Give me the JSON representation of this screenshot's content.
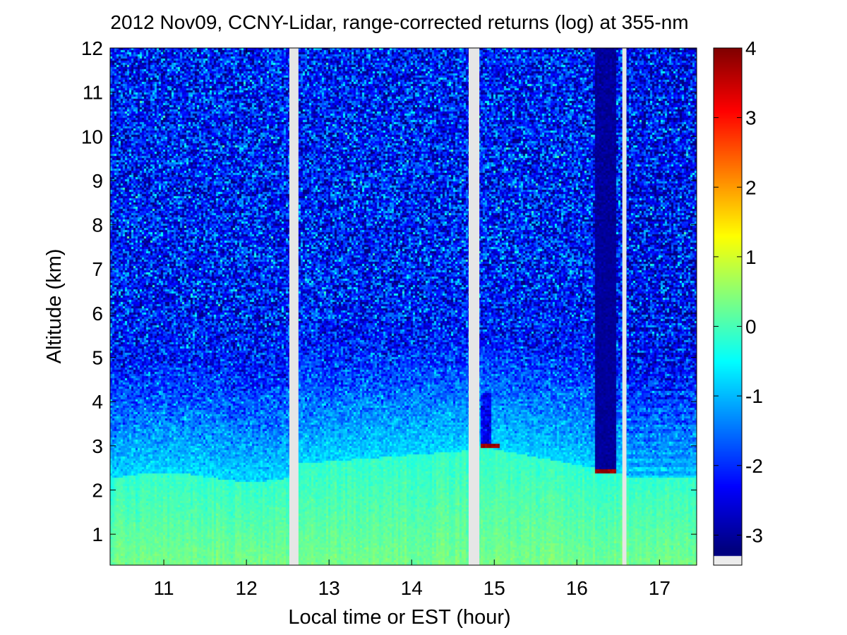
{
  "chart_data": {
    "type": "heatmap",
    "title": "2012 Nov09, CCNY-Lidar, range-corrected returns (log) at 355-nm",
    "xlabel": "Local time or EST (hour)",
    "ylabel": "Altitude (km)",
    "xlim": [
      10.35,
      17.45
    ],
    "ylim": [
      0.3,
      12
    ],
    "xticks": [
      "11",
      "12",
      "13",
      "14",
      "15",
      "16",
      "17"
    ],
    "xtick_values": [
      11,
      12,
      13,
      14,
      15,
      16,
      17
    ],
    "yticks": [
      "1",
      "2",
      "3",
      "4",
      "5",
      "6",
      "7",
      "8",
      "9",
      "10",
      "11",
      "12"
    ],
    "ytick_values": [
      1,
      2,
      3,
      4,
      5,
      6,
      7,
      8,
      9,
      10,
      11,
      12
    ],
    "colorbar": {
      "min": -3.2,
      "max": 4,
      "ticks": [
        "4",
        "3",
        "2",
        "1",
        "0",
        "-1",
        "-2",
        "-3"
      ],
      "tick_values": [
        4,
        3,
        2,
        1,
        0,
        -1,
        -2,
        -3
      ],
      "colormap": "jet"
    },
    "data_gaps_hours": [
      [
        12.52,
        12.63
      ],
      [
        14.69,
        14.82
      ],
      [
        16.55,
        16.6
      ]
    ],
    "features": [
      {
        "description": "boundary layer top",
        "time_range": [
          10.35,
          17.45
        ],
        "altitude_km": [
          2.2,
          3.4
        ]
      },
      {
        "description": "thin cloud layer",
        "time_range": [
          14.82,
          15.05
        ],
        "altitude_km": 3.0,
        "value": 4
      },
      {
        "description": "thin cloud layer",
        "time_range": [
          16.22,
          16.48
        ],
        "altitude_km": 2.42,
        "value": 4
      },
      {
        "description": "signal attenuated above cloud",
        "time_range": [
          16.22,
          16.48
        ],
        "altitude_km": [
          2.5,
          12
        ],
        "value": -3
      }
    ]
  },
  "colors": {
    "background": "#ffffff",
    "gap": "#e6e6e6",
    "nodata_swatch": "#ececec"
  }
}
